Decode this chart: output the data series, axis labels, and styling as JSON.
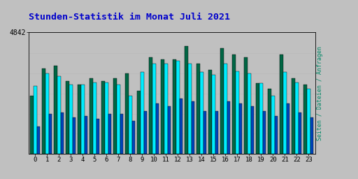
{
  "title": "Stunden-Statistik im Monat Juli 2021",
  "title_color": "#0000CC",
  "ylabel_right": "Seiten / Dateien / Anfragen",
  "ylabel_right_color": "#008866",
  "background_color": "#C0C0C0",
  "plot_bg_color": "#C0C0C0",
  "categories": [
    0,
    1,
    2,
    3,
    4,
    5,
    6,
    7,
    8,
    9,
    10,
    11,
    12,
    13,
    14,
    15,
    16,
    17,
    18,
    19,
    20,
    21,
    22,
    23
  ],
  "bar_colors": [
    "#006644",
    "#00EEFF",
    "#0044BB"
  ],
  "bar_width": 0.28,
  "series1": [
    2300,
    3400,
    3500,
    2900,
    2750,
    3000,
    2900,
    3000,
    3200,
    2500,
    3850,
    3750,
    3750,
    4300,
    3600,
    3350,
    4200,
    3950,
    3850,
    2800,
    2600,
    3950,
    3000,
    2750
  ],
  "series2": [
    2700,
    3200,
    3100,
    2750,
    2750,
    2850,
    2850,
    2750,
    2300,
    3250,
    3600,
    3600,
    3700,
    3600,
    3250,
    3150,
    3600,
    3300,
    3200,
    2800,
    2300,
    3250,
    2850,
    2600
  ],
  "series3": [
    1100,
    1600,
    1650,
    1450,
    1500,
    1400,
    1600,
    1600,
    1300,
    1700,
    2000,
    1900,
    2200,
    2100,
    1700,
    1700,
    2100,
    2000,
    1900,
    1700,
    1500,
    2000,
    1650,
    1450
  ],
  "ymax": 4842,
  "yticks": [
    4842
  ],
  "grid_color": "#BBBBBB",
  "grid_lines_y": [
    800,
    1600,
    2400,
    3200,
    4000,
    4842
  ]
}
